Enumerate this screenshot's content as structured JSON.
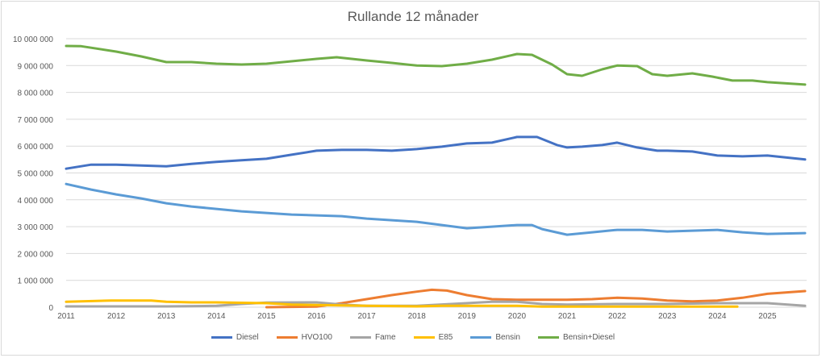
{
  "chart_data": {
    "type": "line",
    "title": "Rullande 12 månader",
    "xlabel": "",
    "ylabel": "",
    "xlim": [
      2011,
      2025.75
    ],
    "ylim": [
      0,
      10000000
    ],
    "x_ticks": [
      "2011",
      "2012",
      "2013",
      "2014",
      "2015",
      "2016",
      "2017",
      "2018",
      "2019",
      "2020",
      "2021",
      "2022",
      "2023",
      "2024",
      "2025"
    ],
    "y_ticks": [
      "0",
      "1 000 000",
      "2 000 000",
      "3 000 000",
      "4 000 000",
      "5 000 000",
      "6 000 000",
      "7 000 000",
      "8 000 000",
      "9 000 000",
      "10 000 000"
    ],
    "grid": "horizontal",
    "legend": "bottom",
    "series": [
      {
        "name": "Diesel",
        "color": "#4472C4",
        "x": [
          2011,
          2011.5,
          2012,
          2012.5,
          2013,
          2013.5,
          2014,
          2014.5,
          2015,
          2015.5,
          2016,
          2016.5,
          2017,
          2017.5,
          2018,
          2018.5,
          2019,
          2019.5,
          2020,
          2020.4,
          2020.8,
          2021,
          2021.3,
          2021.7,
          2022,
          2022.4,
          2022.8,
          2023,
          2023.5,
          2024,
          2024.5,
          2025,
          2025.75
        ],
        "y": [
          5160000,
          5310000,
          5310000,
          5280000,
          5250000,
          5340000,
          5410000,
          5470000,
          5530000,
          5680000,
          5830000,
          5860000,
          5860000,
          5830000,
          5890000,
          5980000,
          6100000,
          6130000,
          6340000,
          6340000,
          6040000,
          5950000,
          5980000,
          6040000,
          6130000,
          5950000,
          5830000,
          5830000,
          5800000,
          5650000,
          5620000,
          5650000,
          5500000
        ]
      },
      {
        "name": "HVO100",
        "color": "#ED7D31",
        "x": [
          2015,
          2016,
          2016.5,
          2017,
          2017.5,
          2018,
          2018.3,
          2018.6,
          2019,
          2019.5,
          2020,
          2021,
          2021.5,
          2022,
          2022.5,
          2023,
          2023.5,
          2024,
          2024.5,
          2025,
          2025.75
        ],
        "y": [
          0,
          20000,
          150000,
          300000,
          450000,
          580000,
          650000,
          620000,
          450000,
          300000,
          280000,
          280000,
          300000,
          350000,
          320000,
          250000,
          220000,
          250000,
          350000,
          500000,
          600000
        ]
      },
      {
        "name": "Fame",
        "color": "#A5A5A5",
        "x": [
          2011,
          2012,
          2013,
          2014,
          2014.5,
          2015,
          2016,
          2016.5,
          2017,
          2018,
          2019,
          2019.5,
          2020,
          2020.5,
          2021,
          2022,
          2023,
          2024,
          2025,
          2025.75
        ],
        "y": [
          30000,
          30000,
          30000,
          50000,
          120000,
          170000,
          180000,
          100000,
          50000,
          50000,
          150000,
          200000,
          200000,
          120000,
          100000,
          120000,
          120000,
          150000,
          150000,
          50000
        ]
      },
      {
        "name": "E85",
        "color": "#FFC000",
        "x": [
          2011,
          2011.9,
          2012.7,
          2013,
          2013.5,
          2014,
          2015,
          2015.5,
          2016,
          2017,
          2018,
          2018.5,
          2019,
          2020,
          2020.5,
          2024.4
        ],
        "y": [
          200000,
          250000,
          250000,
          200000,
          180000,
          180000,
          150000,
          100000,
          80000,
          50000,
          30000,
          50000,
          50000,
          50000,
          20000,
          20000
        ]
      },
      {
        "name": "Bensin",
        "color": "#5B9BD5",
        "x": [
          2011,
          2011.5,
          2012,
          2012.5,
          2013,
          2013.5,
          2014,
          2014.5,
          2015,
          2015.5,
          2016,
          2016.5,
          2017,
          2017.5,
          2018,
          2018.5,
          2019,
          2019.5,
          2020,
          2020.3,
          2020.5,
          2021,
          2021.5,
          2022,
          2022.5,
          2023,
          2023.5,
          2024,
          2024.5,
          2025,
          2025.75
        ],
        "y": [
          4590000,
          4380000,
          4200000,
          4050000,
          3870000,
          3750000,
          3660000,
          3570000,
          3510000,
          3450000,
          3420000,
          3390000,
          3300000,
          3240000,
          3180000,
          3060000,
          2940000,
          3000000,
          3060000,
          3060000,
          2910000,
          2700000,
          2790000,
          2880000,
          2880000,
          2820000,
          2850000,
          2880000,
          2790000,
          2730000,
          2760000
        ]
      },
      {
        "name": "Bensin+Diesel",
        "color": "#70AD47",
        "x": [
          2011,
          2011.3,
          2012,
          2012.5,
          2013,
          2013.5,
          2014,
          2014.5,
          2015,
          2015.5,
          2016,
          2016.4,
          2017,
          2017.5,
          2018,
          2018.5,
          2019,
          2019.5,
          2020,
          2020.3,
          2020.7,
          2021,
          2021.3,
          2021.7,
          2022,
          2022.4,
          2022.7,
          2023,
          2023.5,
          2023.9,
          2024.3,
          2024.7,
          2025,
          2025.75
        ],
        "y": [
          9730000,
          9720000,
          9520000,
          9340000,
          9130000,
          9130000,
          9070000,
          9040000,
          9070000,
          9160000,
          9250000,
          9310000,
          9190000,
          9100000,
          9000000,
          8980000,
          9070000,
          9220000,
          9430000,
          9400000,
          9040000,
          8680000,
          8620000,
          8860000,
          9000000,
          8980000,
          8680000,
          8620000,
          8710000,
          8590000,
          8440000,
          8440000,
          8380000,
          8290000
        ]
      }
    ]
  }
}
